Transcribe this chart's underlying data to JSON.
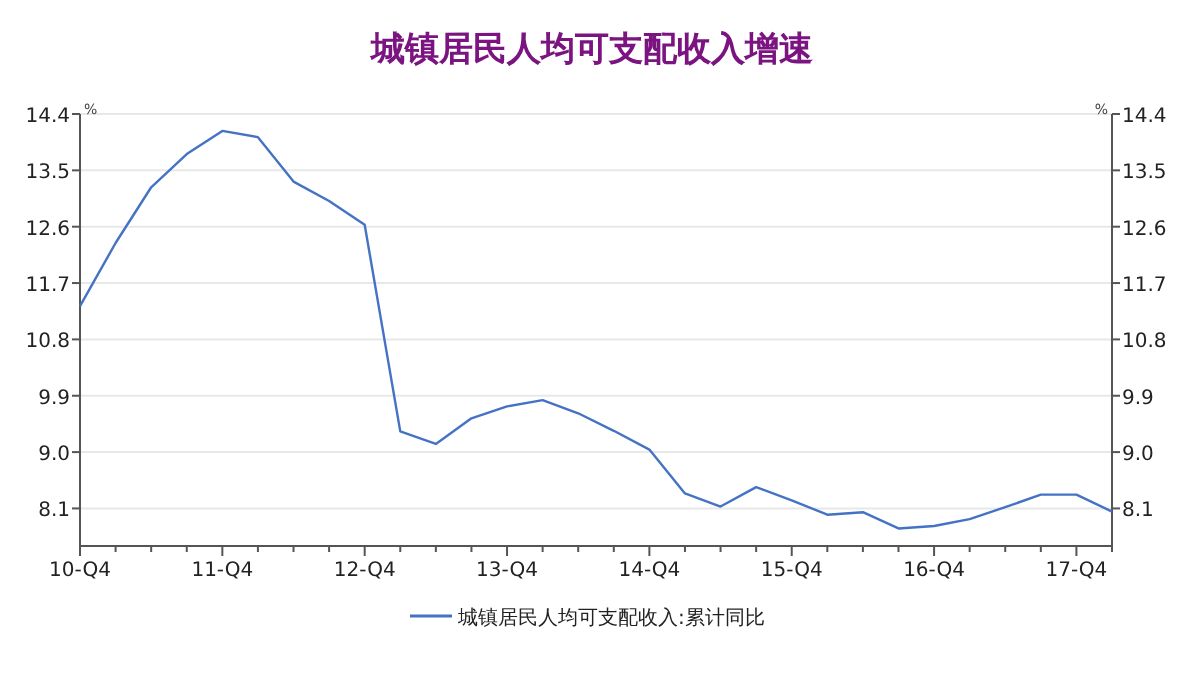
{
  "chart_data": {
    "type": "line",
    "title": "城镇居民人均可支配收入增速",
    "categories": [
      "10-Q4",
      null,
      null,
      null,
      "11-Q4",
      null,
      null,
      null,
      "12-Q4",
      null,
      null,
      null,
      "13-Q4",
      null,
      null,
      null,
      "14-Q4",
      null,
      null,
      null,
      "15-Q4",
      null,
      null,
      null,
      "16-Q4",
      null,
      null,
      null,
      "17-Q4",
      null
    ],
    "series": [
      {
        "name": "城镇居民人均可支配收入:累计同比",
        "color": "#4472c4",
        "values": [
          11.33,
          12.34,
          13.23,
          13.76,
          14.13,
          14.03,
          13.32,
          13.01,
          12.63,
          9.33,
          9.13,
          9.54,
          9.73,
          9.83,
          9.62,
          9.34,
          9.04,
          8.34,
          8.13,
          8.44,
          8.23,
          8.0,
          8.04,
          7.78,
          7.82,
          7.93,
          8.12,
          8.32,
          8.32,
          8.05
        ]
      }
    ],
    "ylabel": "%",
    "y2label": "%",
    "ylim": [
      7.5,
      14.4
    ],
    "yticks": [
      8.1,
      {
        "value": 9,
        "label": "9.0"
      },
      9.9,
      10.8,
      11.7,
      12.6,
      13.5,
      14.4
    ],
    "y2lim": [
      7.5,
      14.4
    ],
    "y2ticks": [
      8.1,
      {
        "value": 9,
        "label": "9.0"
      },
      9.9,
      10.8,
      11.7,
      12.6,
      13.5,
      14.4
    ],
    "grid": "y",
    "legend": "bottom",
    "marker": "none",
    "line_style": "solid"
  }
}
